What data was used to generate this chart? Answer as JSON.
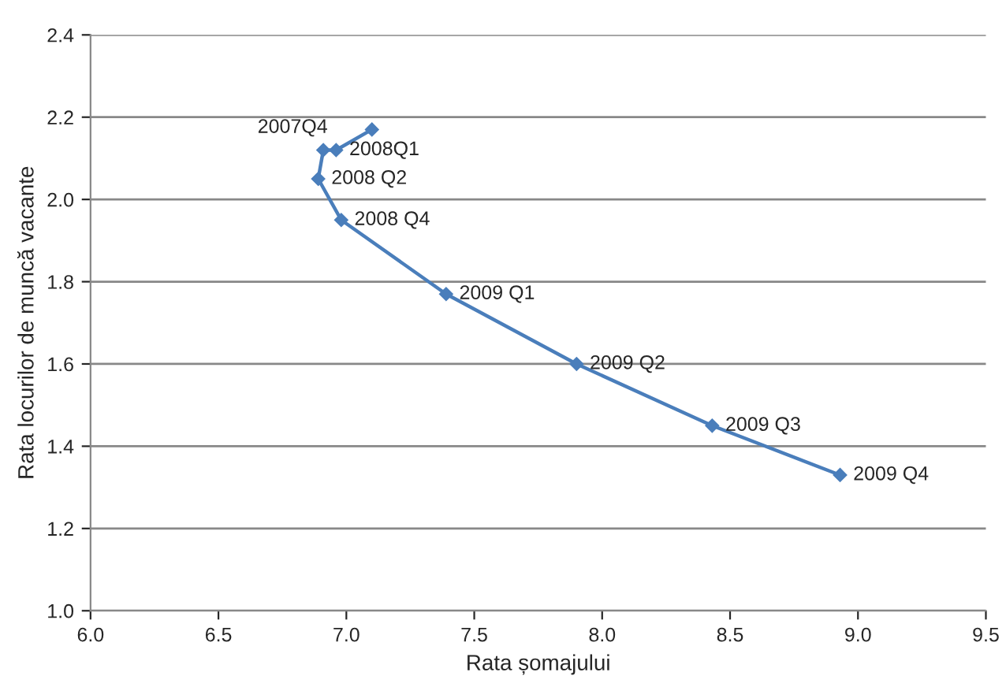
{
  "chart_data": {
    "type": "line",
    "xlabel": "Rata șomajului",
    "ylabel": "Rata locurilor de muncă vacante",
    "x": [
      7.1,
      6.96,
      6.91,
      6.89,
      6.98,
      7.39,
      7.9,
      8.43,
      8.93
    ],
    "series": [
      {
        "color": "#4a7ebb",
        "values": [
          2.17,
          2.12,
          2.12,
          2.05,
          1.95,
          1.77,
          1.6,
          1.45,
          1.33
        ]
      }
    ],
    "annotations": [
      {
        "text": "2007Q4",
        "x": 6.91,
        "y": 2.12
      },
      {
        "text": "2008Q1",
        "x": 6.96,
        "y": 2.12
      },
      {
        "text": "2008 Q2",
        "x": 6.89,
        "y": 2.05
      },
      {
        "text": "2008 Q4",
        "x": 6.98,
        "y": 1.95
      },
      {
        "text": "2009 Q1",
        "x": 7.39,
        "y": 1.77
      },
      {
        "text": "2009 Q2",
        "x": 7.9,
        "y": 1.6
      },
      {
        "text": "2009 Q3",
        "x": 8.43,
        "y": 1.45
      },
      {
        "text": "2009 Q4",
        "x": 8.93,
        "y": 1.33
      }
    ],
    "xlim": [
      6.0,
      9.5
    ],
    "xticks": [
      {
        "value": 6.0,
        "label": "6.0"
      },
      {
        "value": 6.5,
        "label": "6.5"
      },
      {
        "value": 7.0,
        "label": "7.0"
      },
      {
        "value": 7.5,
        "label": "7.5"
      },
      {
        "value": 8.0,
        "label": "8.0"
      },
      {
        "value": 8.5,
        "label": "8.5"
      },
      {
        "value": 9.0,
        "label": "9.0"
      },
      {
        "value": 9.5,
        "label": "9.5"
      }
    ],
    "ylim": [
      1.0,
      2.4
    ],
    "yticks": [
      {
        "value": 1.0,
        "label": "1.0"
      },
      {
        "value": 1.2,
        "label": "1.2"
      },
      {
        "value": 1.4,
        "label": "1.4"
      },
      {
        "value": 1.6,
        "label": "1.6"
      },
      {
        "value": 1.8,
        "label": "1.8"
      },
      {
        "value": 2.0,
        "label": "2.0"
      },
      {
        "value": 2.2,
        "label": "2.2"
      },
      {
        "value": 2.4,
        "label": "2.4"
      }
    ],
    "grid": "y",
    "marker": "diamond",
    "line_style": "solid",
    "legend": false
  }
}
